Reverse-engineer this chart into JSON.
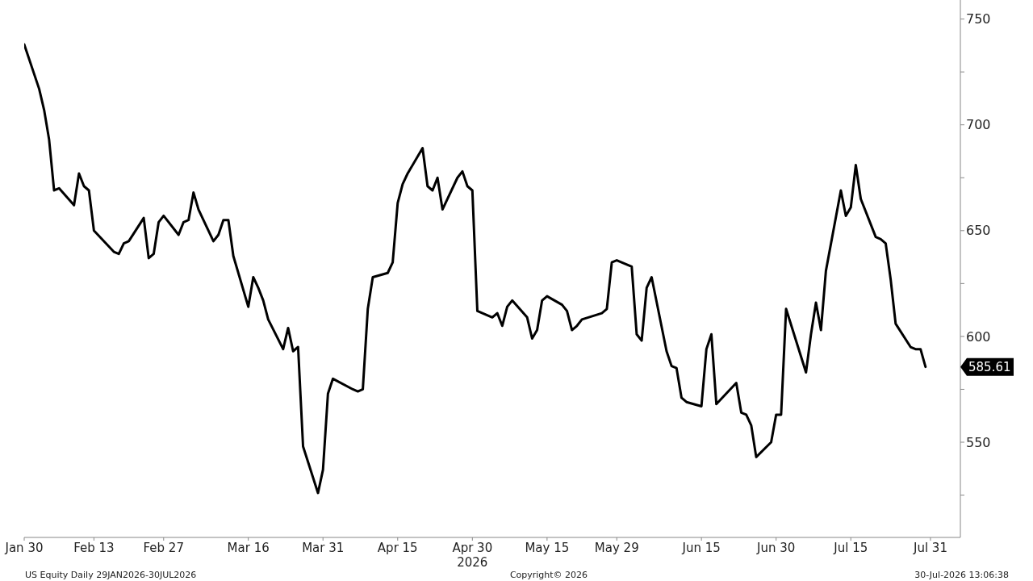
{
  "chart_data": {
    "type": "line",
    "color": "#000000",
    "line_style": "solid",
    "x": [
      "2026-01-30",
      "2026-02-02",
      "2026-02-03",
      "2026-02-04",
      "2026-02-05",
      "2026-02-06",
      "2026-02-09",
      "2026-02-10",
      "2026-02-11",
      "2026-02-12",
      "2026-02-13",
      "2026-02-17",
      "2026-02-18",
      "2026-02-19",
      "2026-02-20",
      "2026-02-23",
      "2026-02-24",
      "2026-02-25",
      "2026-02-26",
      "2026-02-27",
      "2026-03-02",
      "2026-03-03",
      "2026-03-04",
      "2026-03-05",
      "2026-03-06",
      "2026-03-09",
      "2026-03-10",
      "2026-03-11",
      "2026-03-12",
      "2026-03-13",
      "2026-03-16",
      "2026-03-17",
      "2026-03-18",
      "2026-03-19",
      "2026-03-20",
      "2026-03-23",
      "2026-03-24",
      "2026-03-25",
      "2026-03-26",
      "2026-03-27",
      "2026-03-30",
      "2026-03-31",
      "2026-04-01",
      "2026-04-02",
      "2026-04-06",
      "2026-04-07",
      "2026-04-08",
      "2026-04-09",
      "2026-04-10",
      "2026-04-13",
      "2026-04-14",
      "2026-04-15",
      "2026-04-16",
      "2026-04-17",
      "2026-04-20",
      "2026-04-21",
      "2026-04-22",
      "2026-04-23",
      "2026-04-24",
      "2026-04-27",
      "2026-04-28",
      "2026-04-29",
      "2026-04-30",
      "2026-05-01",
      "2026-05-04",
      "2026-05-05",
      "2026-05-06",
      "2026-05-07",
      "2026-05-08",
      "2026-05-11",
      "2026-05-12",
      "2026-05-13",
      "2026-05-14",
      "2026-05-15",
      "2026-05-18",
      "2026-05-19",
      "2026-05-20",
      "2026-05-21",
      "2026-05-22",
      "2026-05-26",
      "2026-05-27",
      "2026-05-28",
      "2026-05-29",
      "2026-06-01",
      "2026-06-02",
      "2026-06-03",
      "2026-06-04",
      "2026-06-05",
      "2026-06-08",
      "2026-06-09",
      "2026-06-10",
      "2026-06-11",
      "2026-06-12",
      "2026-06-15",
      "2026-06-16",
      "2026-06-17",
      "2026-06-18",
      "2026-06-22",
      "2026-06-23",
      "2026-06-24",
      "2026-06-25",
      "2026-06-26",
      "2026-06-29",
      "2026-06-30",
      "2026-07-01",
      "2026-07-02",
      "2026-07-06",
      "2026-07-07",
      "2026-07-08",
      "2026-07-09",
      "2026-07-10",
      "2026-07-13",
      "2026-07-14",
      "2026-07-15",
      "2026-07-16",
      "2026-07-17",
      "2026-07-20",
      "2026-07-21",
      "2026-07-22",
      "2026-07-23",
      "2026-07-24",
      "2026-07-27",
      "2026-07-28",
      "2026-07-29",
      "2026-07-30"
    ],
    "values": [
      738,
      717,
      707,
      693,
      669,
      670,
      662,
      677,
      671,
      669,
      650,
      640,
      639,
      644,
      645,
      656,
      637,
      639,
      654,
      657,
      648,
      654,
      655,
      668,
      660,
      645,
      648,
      655,
      655,
      638,
      614,
      628,
      623,
      617,
      608,
      594,
      604,
      593,
      595,
      548,
      526,
      537,
      573,
      580,
      575,
      574,
      575,
      613,
      628,
      630,
      635,
      663,
      672,
      677,
      689,
      671,
      669,
      675,
      660,
      675,
      678,
      671,
      669,
      612,
      609,
      611,
      605,
      614,
      617,
      609,
      599,
      603,
      617,
      619,
      615,
      612,
      603,
      605,
      608,
      611,
      613,
      635,
      636,
      633,
      601,
      598,
      623,
      628,
      593,
      586,
      585,
      571,
      569,
      567,
      594,
      601,
      568,
      578,
      564,
      563,
      558,
      543,
      550,
      563,
      563,
      613,
      583,
      601,
      616,
      603,
      631,
      669,
      657,
      661,
      681,
      665,
      647,
      646,
      644,
      627,
      606,
      595,
      594,
      594,
      585.61
    ],
    "xlim": [
      "2026-01-30",
      "2026-08-06"
    ],
    "xticks": [
      {
        "value": "2026-01-30",
        "label": "Jan 30"
      },
      {
        "value": "2026-02-13",
        "label": "Feb 13"
      },
      {
        "value": "2026-02-27",
        "label": "Feb 27"
      },
      {
        "value": "2026-03-16",
        "label": "Mar 16"
      },
      {
        "value": "2026-03-31",
        "label": "Mar 31"
      },
      {
        "value": "2026-04-15",
        "label": "Apr 15"
      },
      {
        "value": "2026-04-30",
        "label": "Apr 30\n2026"
      },
      {
        "value": "2026-05-15",
        "label": "May 15"
      },
      {
        "value": "2026-05-29",
        "label": "May 29"
      },
      {
        "value": "2026-06-15",
        "label": "Jun 15"
      },
      {
        "value": "2026-06-30",
        "label": "Jun 30"
      },
      {
        "value": "2026-07-15",
        "label": "Jul 15"
      },
      {
        "value": "2026-07-31",
        "label": "Jul 31"
      }
    ],
    "ylim": [
      505,
      759
    ],
    "yticks": [
      {
        "value": 525,
        "label": null
      },
      550,
      {
        "value": 575,
        "label": null
      },
      600,
      {
        "value": 625,
        "label": null
      },
      650,
      {
        "value": 675,
        "label": null
      },
      700,
      {
        "value": 725,
        "label": null
      },
      750
    ],
    "annotations": [
      "585.61",
      "US Equity Daily 29JAN2026-30JUL2026",
      "Copyright© 2026",
      "30-Jul-2026 13:06:38"
    ]
  }
}
